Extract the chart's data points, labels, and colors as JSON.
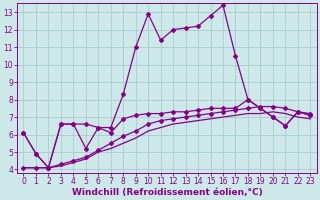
{
  "background_color": "#cce8e8",
  "grid_color": "#aacccc",
  "line_color": "#880088",
  "marker_style": "D",
  "marker_size": 2.0,
  "line_width": 0.9,
  "xlabel": "Windchill (Refroidissement éolien,°C)",
  "xlabel_fontsize": 6.5,
  "tick_fontsize": 5.5,
  "xlim": [
    -0.5,
    23.5
  ],
  "ylim": [
    3.8,
    13.5
  ],
  "yticks": [
    4,
    5,
    6,
    7,
    8,
    9,
    10,
    11,
    12,
    13
  ],
  "xticks": [
    0,
    1,
    2,
    3,
    4,
    5,
    6,
    7,
    8,
    9,
    10,
    11,
    12,
    13,
    14,
    15,
    16,
    17,
    18,
    19,
    20,
    21,
    22,
    23
  ],
  "line1_x": [
    0,
    1,
    2,
    3,
    4,
    5,
    6,
    7,
    8,
    9,
    10,
    11,
    12,
    13,
    14,
    15,
    16,
    17,
    18,
    19,
    20,
    21,
    22,
    23
  ],
  "line1_y": [
    6.1,
    4.9,
    4.1,
    6.6,
    6.6,
    6.6,
    6.4,
    6.4,
    8.3,
    11.0,
    12.9,
    11.4,
    12.0,
    12.1,
    12.2,
    12.8,
    13.4,
    10.5,
    8.0,
    7.5,
    7.0,
    6.5,
    7.3,
    7.1
  ],
  "line2_x": [
    0,
    1,
    2,
    3,
    4,
    5,
    6,
    7,
    8,
    9,
    10,
    11,
    12,
    13,
    14,
    15,
    16,
    17,
    18,
    19,
    20,
    21,
    22,
    23
  ],
  "line2_y": [
    6.1,
    4.9,
    4.1,
    6.6,
    6.6,
    5.2,
    6.4,
    6.1,
    6.9,
    7.1,
    7.2,
    7.2,
    7.3,
    7.3,
    7.4,
    7.5,
    7.5,
    7.5,
    8.0,
    7.5,
    7.0,
    6.5,
    7.3,
    7.1
  ],
  "line3_x": [
    0,
    1,
    2,
    3,
    4,
    5,
    6,
    7,
    8,
    9,
    10,
    11,
    12,
    13,
    14,
    15,
    16,
    17,
    18,
    19,
    20,
    21,
    22,
    23
  ],
  "line3_y": [
    4.1,
    4.1,
    4.1,
    4.3,
    4.5,
    4.7,
    5.1,
    5.5,
    5.9,
    6.2,
    6.6,
    6.8,
    6.9,
    7.0,
    7.1,
    7.2,
    7.3,
    7.4,
    7.5,
    7.6,
    7.6,
    7.5,
    7.3,
    7.2
  ],
  "line4_x": [
    0,
    1,
    2,
    3,
    4,
    5,
    6,
    7,
    8,
    9,
    10,
    11,
    12,
    13,
    14,
    15,
    16,
    17,
    18,
    19,
    20,
    21,
    22,
    23
  ],
  "line4_y": [
    4.1,
    4.1,
    4.1,
    4.2,
    4.4,
    4.6,
    5.0,
    5.2,
    5.5,
    5.8,
    6.2,
    6.4,
    6.6,
    6.7,
    6.8,
    6.9,
    7.0,
    7.1,
    7.2,
    7.2,
    7.3,
    7.2,
    7.0,
    6.9
  ]
}
